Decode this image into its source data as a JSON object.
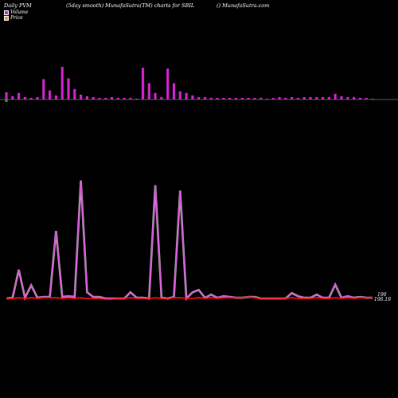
{
  "header": {
    "left": "Daily PVM",
    "middle": "(5day smooth) MunafaSutra(TM) charts for SBIL",
    "right": "() MunafaSutra.com"
  },
  "legend": [
    {
      "label": "Volume",
      "color": "#cc22cc"
    },
    {
      "label": "Price",
      "color": "#ff9900"
    }
  ],
  "colors": {
    "background": "#000000",
    "volume_up": "#cc22cc",
    "volume_down": "#22aa22",
    "pvm_line": "#dd44dd",
    "price_line": "#ff1111"
  },
  "chart_data": [
    {
      "type": "bar",
      "name": "volume",
      "categories": [
        1,
        2,
        3,
        4,
        5,
        6,
        7,
        8,
        9,
        10,
        11,
        12,
        13,
        14,
        15,
        16,
        17,
        18,
        19,
        20,
        21,
        22,
        23,
        24,
        25,
        26,
        27,
        28,
        29,
        30,
        31,
        32,
        33,
        34,
        35,
        36,
        37,
        38,
        39,
        40,
        41,
        42,
        43,
        44,
        45,
        46,
        47,
        48,
        49,
        50,
        51,
        52,
        53,
        54,
        55,
        56,
        57,
        58,
        59,
        60
      ],
      "values": [
        9,
        4,
        8,
        3,
        2,
        3,
        25,
        11,
        5,
        40,
        26,
        13,
        6,
        4,
        3,
        2,
        2,
        3,
        2,
        2,
        2,
        1,
        39,
        20,
        8,
        3,
        38,
        20,
        10,
        8,
        5,
        3,
        3,
        2,
        2,
        2,
        2,
        2,
        2,
        2,
        2,
        2,
        1,
        2,
        3,
        2,
        3,
        2,
        3,
        3,
        3,
        3,
        3,
        7,
        4,
        3,
        3,
        2,
        2,
        1
      ],
      "down": [
        1,
        0,
        0,
        0,
        0,
        0,
        0,
        0,
        0,
        0,
        0,
        0,
        0,
        0,
        0,
        0,
        0,
        0,
        0,
        0,
        0,
        0,
        0,
        0,
        0,
        0,
        0,
        0,
        0,
        0,
        0,
        0,
        0,
        0,
        0,
        0,
        0,
        0,
        0,
        0,
        0,
        0,
        0,
        0,
        0,
        0,
        0,
        0,
        0,
        0,
        0,
        0,
        0,
        0,
        0,
        0,
        0,
        0,
        0,
        0
      ],
      "ylim": [
        0,
        42
      ]
    },
    {
      "type": "line",
      "name": "pvm",
      "x": [
        1,
        2,
        3,
        4,
        5,
        6,
        7,
        8,
        9,
        10,
        11,
        12,
        13,
        14,
        15,
        16,
        17,
        18,
        19,
        20,
        21,
        22,
        23,
        24,
        25,
        26,
        27,
        28,
        29,
        30,
        31,
        32,
        33,
        34,
        35,
        36,
        37,
        38,
        39,
        40,
        41,
        42,
        43,
        44,
        45,
        46,
        47,
        48,
        49,
        50,
        51,
        52,
        53,
        54,
        55,
        56,
        57,
        58,
        59,
        60
      ],
      "series": [
        {
          "values": [
            1,
            2,
            38,
            2,
            18,
            2,
            3,
            3,
            88,
            3,
            4,
            3,
            153,
            9,
            3,
            3,
            1,
            1,
            1,
            1,
            9,
            2,
            2,
            1,
            147,
            2,
            1,
            3,
            140,
            1,
            9,
            12,
            2,
            6,
            2,
            4,
            3,
            2,
            2,
            3,
            3,
            1,
            1,
            1,
            1,
            1,
            8,
            4,
            2,
            2,
            6,
            2,
            2,
            19,
            2,
            4,
            2,
            3,
            2,
            2
          ]
        },
        {
          "values": [
            1,
            1,
            2,
            1,
            2,
            1,
            2,
            2,
            2,
            1,
            2,
            1,
            2,
            1,
            1,
            1,
            0,
            0,
            1,
            1,
            2,
            1,
            1,
            1,
            2,
            1,
            1,
            2,
            2,
            1,
            1,
            2,
            1,
            2,
            1,
            2,
            2,
            2,
            2,
            3,
            2,
            1,
            1,
            1,
            1,
            1,
            2,
            1,
            1,
            1,
            2,
            1,
            1,
            2,
            1,
            2,
            1,
            2,
            2,
            2
          ]
        }
      ],
      "ylim": [
        0,
        160
      ]
    }
  ],
  "labels": {
    "right_top": "190",
    "right_bottom": "190.19"
  }
}
